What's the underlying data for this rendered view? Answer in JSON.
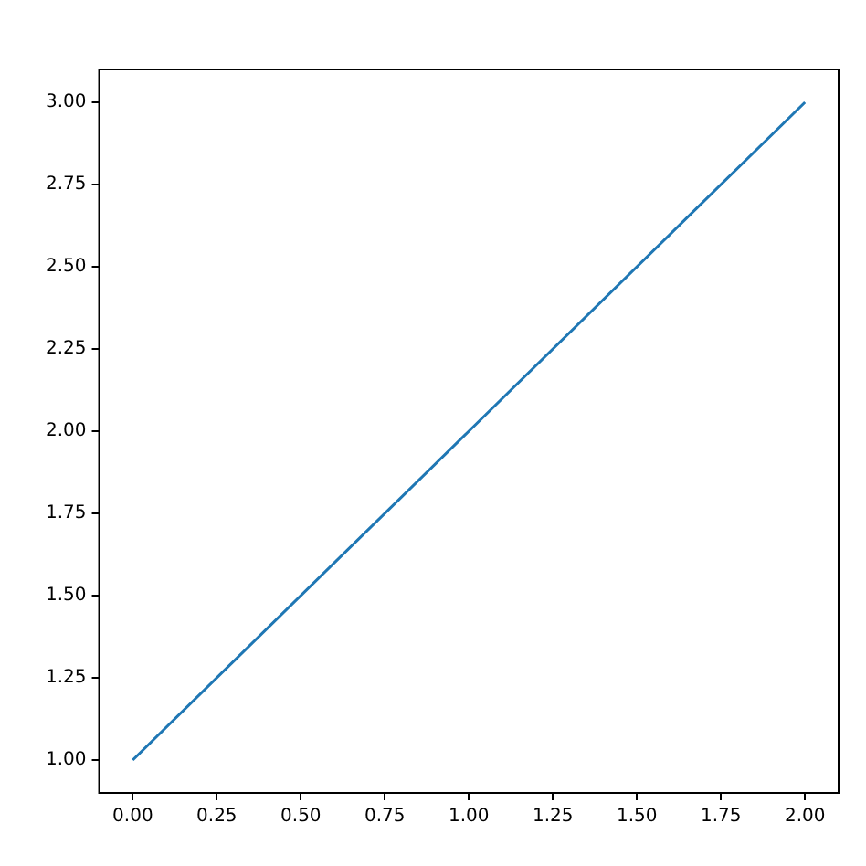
{
  "chart_data": {
    "type": "line",
    "x": [
      0,
      1,
      2
    ],
    "series": [
      {
        "color": "#1f77b4",
        "values": [
          1,
          2,
          3
        ]
      }
    ],
    "xlim": [
      -0.1,
      2.1
    ],
    "ylim": [
      0.9,
      3.1
    ],
    "xticks": [
      {
        "value": 0,
        "label": "0.00"
      },
      {
        "value": 0.25,
        "label": "0.25"
      },
      {
        "value": 0.5,
        "label": "0.50"
      },
      {
        "value": 0.75,
        "label": "0.75"
      },
      {
        "value": 1,
        "label": "1.00"
      },
      {
        "value": 1.25,
        "label": "1.25"
      },
      {
        "value": 1.5,
        "label": "1.50"
      },
      {
        "value": 1.75,
        "label": "1.75"
      },
      {
        "value": 2,
        "label": "2.00"
      }
    ],
    "yticks": [
      {
        "value": 1,
        "label": "1.00"
      },
      {
        "value": 1.25,
        "label": "1.25"
      },
      {
        "value": 1.5,
        "label": "1.50"
      },
      {
        "value": 1.75,
        "label": "1.75"
      },
      {
        "value": 2,
        "label": "2.00"
      },
      {
        "value": 2.25,
        "label": "2.25"
      },
      {
        "value": 2.5,
        "label": "2.50"
      },
      {
        "value": 2.75,
        "label": "2.75"
      },
      {
        "value": 3,
        "label": "3.00"
      }
    ],
    "grid": false,
    "legend": false,
    "marker": "none",
    "line_style": "solid"
  }
}
